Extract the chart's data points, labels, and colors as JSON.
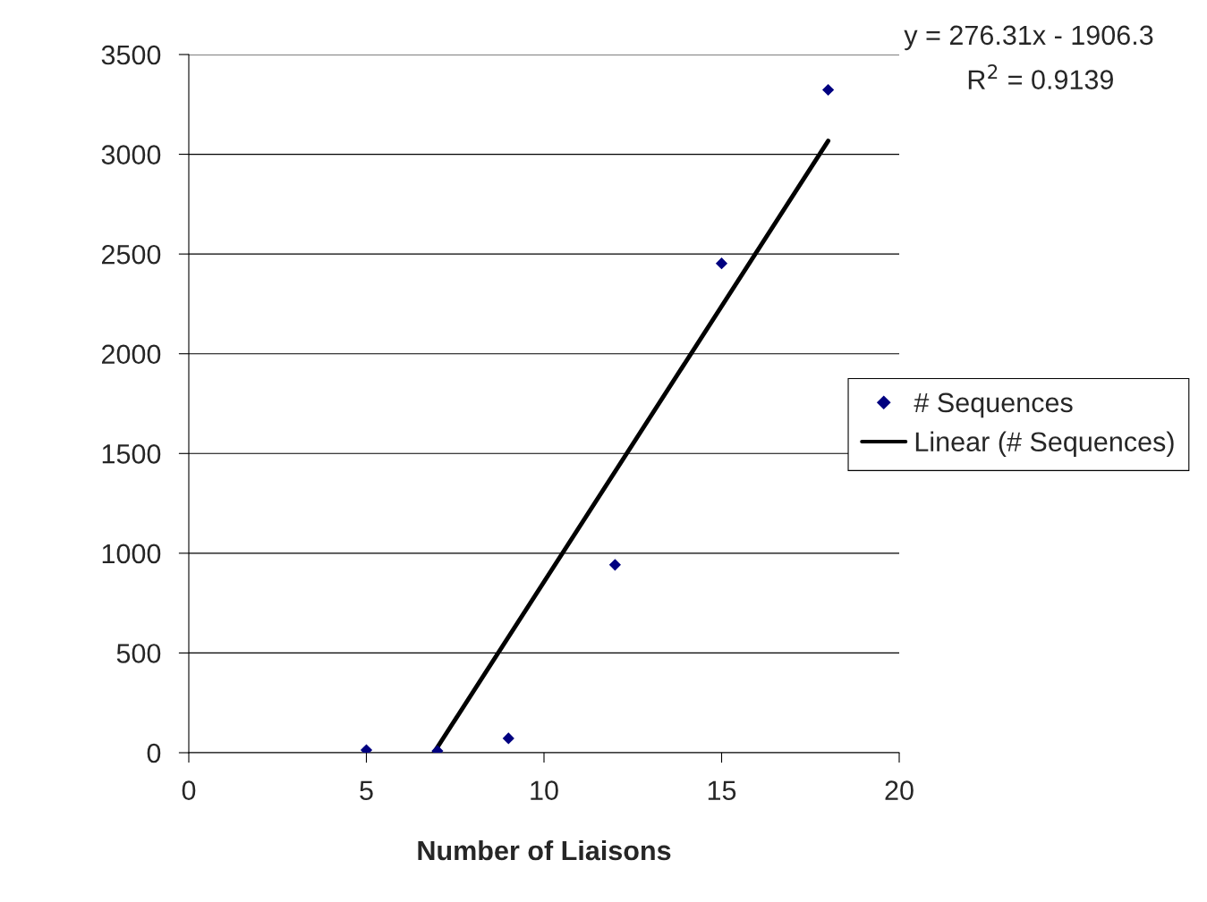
{
  "chart_data": {
    "type": "scatter",
    "xlabel": "Number of Liaisons",
    "series": [
      {
        "name": "# Sequences",
        "color": "#000080",
        "marker": "diamond",
        "x": [
          5,
          7,
          9,
          12,
          15,
          18
        ],
        "values": [
          13,
          9,
          72,
          942,
          2453,
          3323
        ]
      },
      {
        "name": "Linear (# Sequences)",
        "type": "line",
        "color": "#000000",
        "marker": "none",
        "line_style": "solid",
        "x": [
          6.9,
          18
        ],
        "values": [
          0,
          3067
        ]
      }
    ],
    "annotations": [
      "y = 276.31x - 1906.3",
      "R$^{2}$ = 0.9139"
    ],
    "xlim": [
      0,
      20
    ],
    "xticks": [
      0,
      5,
      10,
      15,
      20
    ],
    "ylim": [
      0,
      3500
    ],
    "yticks": [
      0,
      500,
      1000,
      1500,
      2000,
      2500,
      3000,
      3500
    ],
    "grid": "y",
    "legend": "right"
  }
}
